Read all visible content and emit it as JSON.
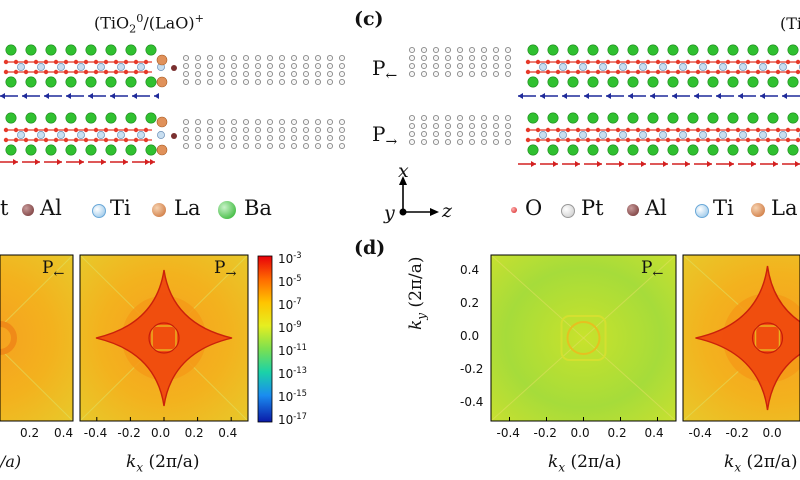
{
  "panels": {
    "c_label": "(c)",
    "d_label": "(d)"
  },
  "structures": {
    "formula_left": "(TiO",
    "formula_left_sub": "2",
    "formula_left_sup": "0",
    "formula_left_rest": "/(LaO)",
    "formula_left_sup2": "+",
    "formula_right_partial": "(Ti",
    "p_left": "P",
    "p_left_arrow": "←",
    "p_right": "P",
    "p_right_arrow": "→"
  },
  "legend_left": {
    "items": [
      {
        "label": "t",
        "color": "#ffffff"
      },
      {
        "label": "Al",
        "color": "#8b4a4a"
      },
      {
        "label": "Ti",
        "color": "#9ec9e8"
      },
      {
        "label": "La",
        "color": "#e0915a"
      },
      {
        "label": "Ba",
        "color": "#3cc23c"
      }
    ]
  },
  "legend_right": {
    "items": [
      {
        "label": "O",
        "color": "#e03030"
      },
      {
        "label": "Pt",
        "color": "#d0d0d0"
      },
      {
        "label": "Al",
        "color": "#8b4a4a"
      },
      {
        "label": "Ti",
        "color": "#9ec9e8"
      },
      {
        "label": "La",
        "color": "#e0915a"
      }
    ]
  },
  "axes_triad": {
    "x": "x",
    "y": "y",
    "z": "z"
  },
  "maps": {
    "ticks": [
      "-0.4",
      "-0.2",
      "0.0",
      "0.2",
      "0.4"
    ],
    "partial_ticks_left": [
      "0.2",
      "0.4"
    ],
    "ytick_labels": [
      "0.4",
      "0.2",
      "0.0",
      "-0.2",
      "-0.4"
    ],
    "xlabel_k": "k",
    "xlabel_sub": "x",
    "xlabel_unit": "(2π/a)",
    "ylabel_k": "k",
    "ylabel_sub": "y",
    "ylabel_unit": "(2π/a)",
    "partial_xlabel": "/a)",
    "tag_left_map": "P",
    "tag_left_arrow": "←",
    "tag_right_map": "P",
    "tag_right_arrow": "→",
    "colorbar_base": "10",
    "colorbar_exponents": [
      "-3",
      "-5",
      "-7",
      "-9",
      "-11",
      "-13",
      "-15",
      "-17"
    ]
  }
}
